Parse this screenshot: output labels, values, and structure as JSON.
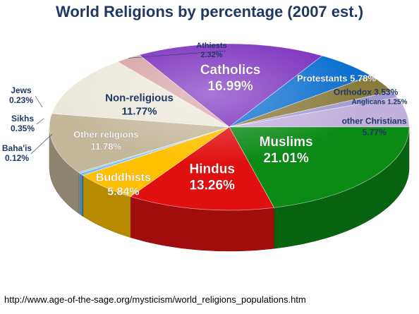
{
  "title": "World Religions by percentage (2007 est.)",
  "source": "http://www.age-of-the-sage.org/mysticism/world_religions_populations.htm",
  "chart_data": {
    "type": "pie",
    "title": "World Religions by percentage (2007 est.)",
    "slices": [
      {
        "name": "Catholics",
        "value": 16.99,
        "label": "16.99%",
        "color": "#7b2fbe",
        "text_color": "#ffffff"
      },
      {
        "name": "Protestants",
        "value": 5.78,
        "label": "5.78%",
        "color": "#0a6fd0",
        "text_color": "#ffffff"
      },
      {
        "name": "Orthodox",
        "value": 3.53,
        "label": "3.53%",
        "color": "#8a7a3c",
        "text_color": "#1f3864"
      },
      {
        "name": "Anglicans",
        "value": 1.25,
        "label": "1.25%",
        "color": "#a39bd6",
        "text_color": "#1f3864"
      },
      {
        "name": "other Christians",
        "value": 5.77,
        "label": "5.77%",
        "color": "#c1b1dc",
        "text_color": "#1f3864"
      },
      {
        "name": "Muslims",
        "value": 21.01,
        "label": "21.01%",
        "color": "#0b8a16",
        "text_color": "#ffffff"
      },
      {
        "name": "Hindus",
        "value": 13.26,
        "label": "13.26%",
        "color": "#e01010",
        "text_color": "#ffffff"
      },
      {
        "name": "Buddhists",
        "value": 5.84,
        "label": "5.84%",
        "color": "#ffc000",
        "text_color": "#ffffff"
      },
      {
        "name": "Baha'is",
        "value": 0.12,
        "label": "0.12%",
        "color": "#4a86c5",
        "text_color": "#1f3864"
      },
      {
        "name": "Sikhs",
        "value": 0.35,
        "label": "0.35%",
        "color": "#6fb7e3",
        "text_color": "#1f3864"
      },
      {
        "name": "Jews",
        "value": 0.23,
        "label": "0.23%",
        "color": "#9cc3e6",
        "text_color": "#1f3864"
      },
      {
        "name": "Other religions",
        "value": 11.78,
        "label": "11.78%",
        "color": "#c4b89a",
        "text_color": "#ffffff"
      },
      {
        "name": "Non-religious",
        "value": 11.77,
        "label": "11.77%",
        "color": "#ece8dc",
        "text_color": "#1f3864"
      },
      {
        "name": "Athiests",
        "value": 2.32,
        "label": "2.32%",
        "color": "#d8a4a6",
        "text_color": "#1f3864"
      }
    ]
  }
}
